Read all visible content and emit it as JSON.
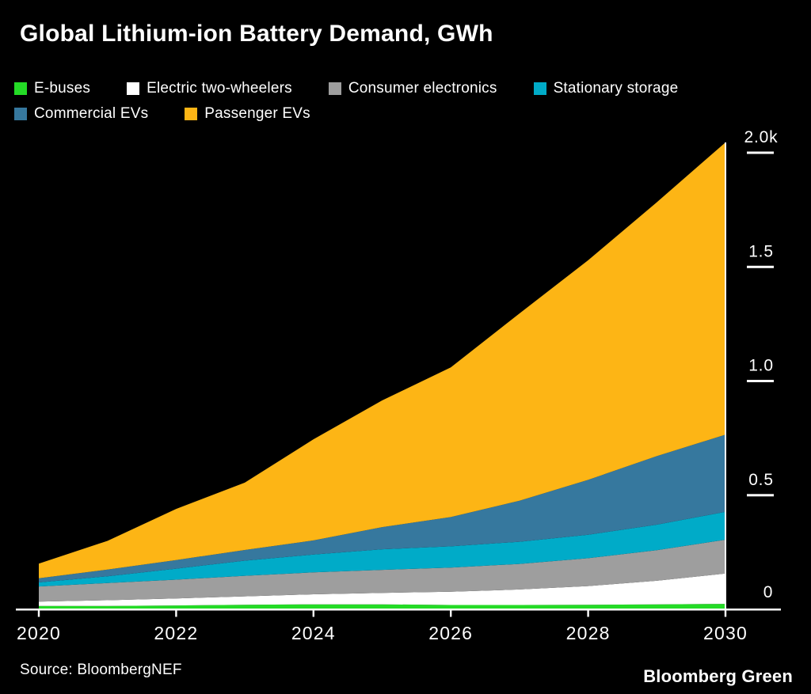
{
  "header": {
    "title": "Global Lithium-ion Battery Demand, GWh"
  },
  "footer": {
    "source": "Source: BloombergNEF",
    "brand": "Bloomberg Green"
  },
  "colors": {
    "background": "#000000",
    "text": "#FFFFFF",
    "axis": "#FFFFFF",
    "e_buses": "#24DB26",
    "electric_two_wheelers": "#FFFFFF",
    "consumer_electronics": "#9E9E9E",
    "stationary_storage": "#00ABC8",
    "commercial_evs": "#36789E",
    "passenger_evs": "#FDB515"
  },
  "chart_data": {
    "type": "area",
    "stacked": true,
    "title": "Global Lithium-ion Battery Demand, GWh",
    "unit": "GWh",
    "x": [
      2020,
      2021,
      2022,
      2023,
      2024,
      2025,
      2026,
      2027,
      2028,
      2029,
      2030
    ],
    "series": [
      {
        "name": "E-buses",
        "color": "#24DB26",
        "values": [
          15,
          15,
          17,
          20,
          22,
          22,
          19,
          19,
          20,
          22,
          24
        ]
      },
      {
        "name": "Electric two-wheelers",
        "color": "#FFFFFF",
        "values": [
          19,
          25,
          31,
          37,
          44,
          50,
          58,
          68,
          82,
          103,
          133
        ]
      },
      {
        "name": "Consumer electronics",
        "color": "#9E9E9E",
        "values": [
          66,
          75,
          82,
          90,
          96,
          101,
          106,
          112,
          122,
          134,
          148
        ]
      },
      {
        "name": "Stationary storage",
        "color": "#00ABC8",
        "values": [
          18,
          30,
          48,
          66,
          78,
          90,
          93,
          97,
          103,
          112,
          122
        ]
      },
      {
        "name": "Commercial EVs",
        "color": "#36789E",
        "values": [
          18,
          29,
          38,
          47,
          62,
          97,
          128,
          180,
          240,
          300,
          338
        ]
      },
      {
        "name": "Passenger EVs",
        "color": "#FDB515",
        "values": [
          64,
          126,
          224,
          295,
          443,
          555,
          656,
          820,
          962,
          1112,
          1280
        ]
      }
    ],
    "totals": [
      200,
      300,
      440,
      555,
      745,
      915,
      1060,
      1296,
      1529,
      1783,
      2045
    ],
    "xlabel": "",
    "ylabel": "GWh",
    "ylim": [
      0,
      2000
    ],
    "x_ticks": [
      2020,
      2022,
      2024,
      2026,
      2028,
      2030
    ],
    "y_ticks": [
      {
        "label": "2.0k",
        "value": 2000,
        "dash": true
      },
      {
        "label": "1.5",
        "value": 1500,
        "dash": true
      },
      {
        "label": "1.0",
        "value": 1000,
        "dash": true
      },
      {
        "label": "0.5",
        "value": 500,
        "dash": true
      },
      {
        "label": "0",
        "value": 0,
        "dash": false
      }
    ],
    "grid": false,
    "legend_position": "top"
  }
}
